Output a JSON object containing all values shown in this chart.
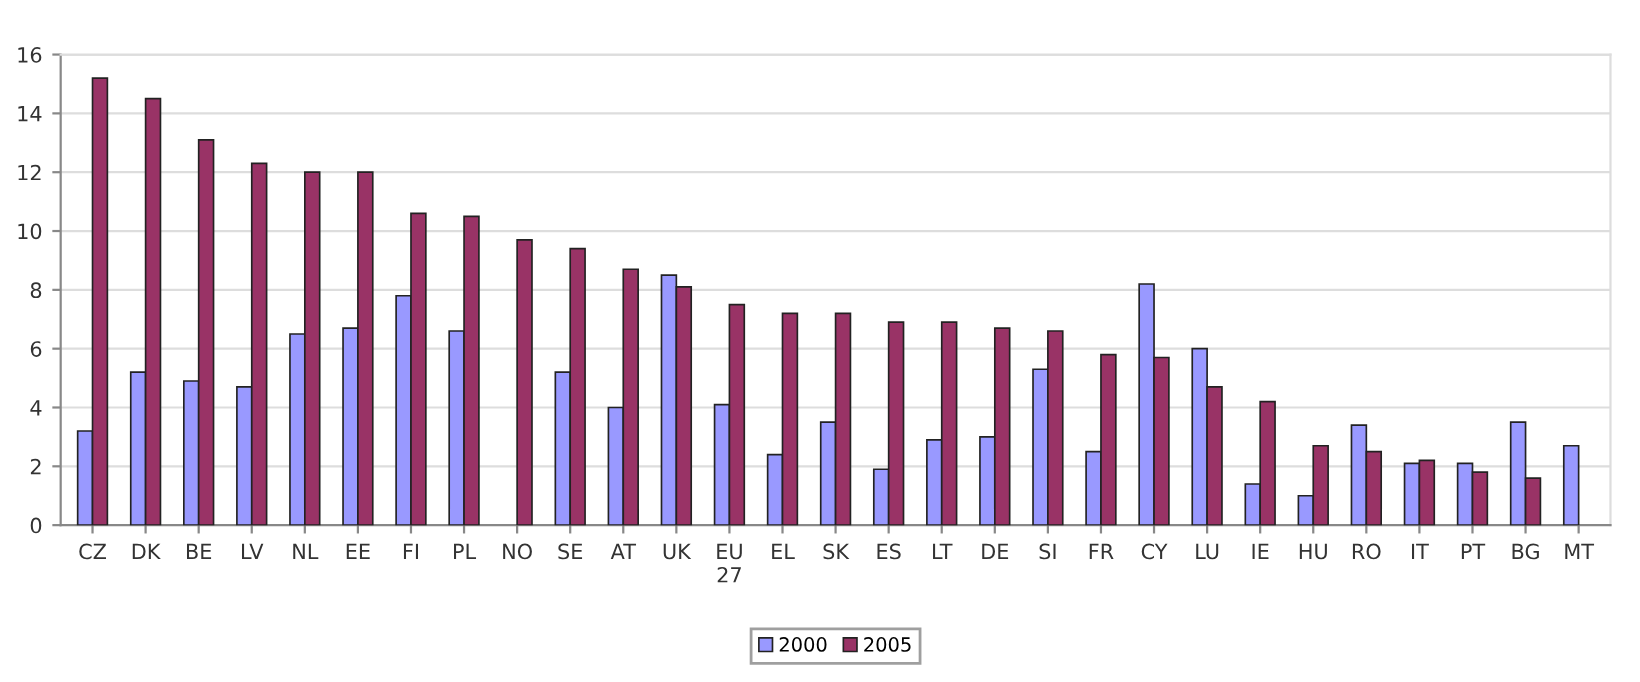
{
  "chart_data": {
    "type": "bar",
    "categories": [
      "CZ",
      "DK",
      "BE",
      "LV",
      "NL",
      "EE",
      "FI",
      "PL",
      "NO",
      "SE",
      "AT",
      "UK",
      "EU\n27",
      "EL",
      "SK",
      "ES",
      "LT",
      "DE",
      "SI",
      "FR",
      "CY",
      "LU",
      "IE",
      "HU",
      "RO",
      "IT",
      "PT",
      "BG",
      "MT"
    ],
    "series": [
      {
        "name": "2000",
        "color": "#9999ff",
        "values": [
          3.2,
          5.2,
          4.9,
          4.7,
          6.5,
          6.7,
          7.8,
          6.6,
          null,
          5.2,
          4.0,
          8.5,
          4.1,
          2.4,
          3.5,
          1.9,
          2.9,
          3.0,
          5.3,
          2.5,
          8.2,
          6.0,
          1.4,
          1.0,
          3.4,
          2.1,
          2.1,
          3.5,
          2.7
        ]
      },
      {
        "name": "2005",
        "color": "#993366",
        "values": [
          15.2,
          14.5,
          13.1,
          12.3,
          12.0,
          12.0,
          10.6,
          10.5,
          9.7,
          9.4,
          8.7,
          8.1,
          7.5,
          7.2,
          7.2,
          6.9,
          6.9,
          6.7,
          6.6,
          5.8,
          5.7,
          4.7,
          4.2,
          2.7,
          2.5,
          2.2,
          1.8,
          1.6,
          null
        ]
      }
    ],
    "ylim": [
      0,
      16
    ],
    "yticks": [
      0,
      2,
      4,
      6,
      8,
      10,
      12,
      14,
      16
    ],
    "grid": "y",
    "legend": "bottom"
  }
}
